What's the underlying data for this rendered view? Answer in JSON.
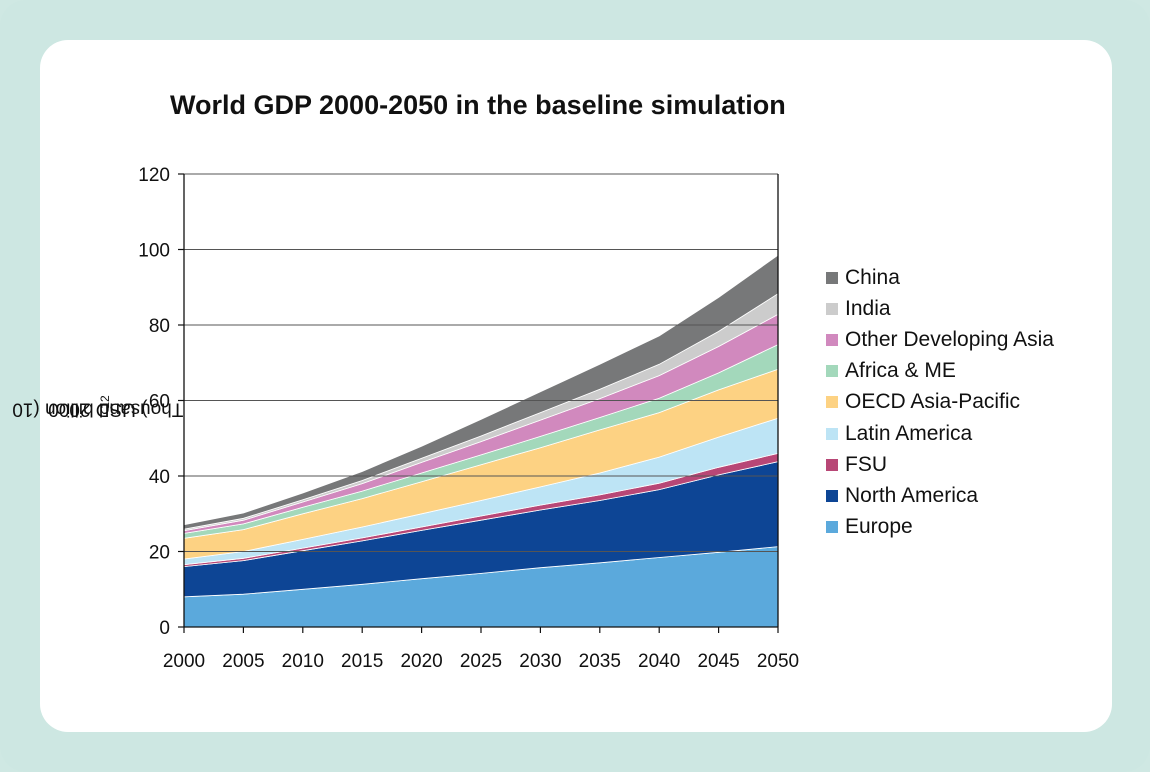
{
  "chart_data": {
    "type": "area",
    "stacked": true,
    "title": "World GDP 2000-2050 in the baseline simulation",
    "ylabel": "Thousand billion (10^12) USD 2000",
    "ylabel_parts": {
      "pre": "Thousand billion (10",
      "sup": "12",
      "post": ") USD 2000"
    },
    "xlabel": "",
    "ylim": [
      0,
      120
    ],
    "yticks": [
      0,
      20,
      40,
      60,
      80,
      100,
      120
    ],
    "grid": "horizontal",
    "legend_position": "right",
    "x": [
      2000,
      2005,
      2010,
      2015,
      2020,
      2025,
      2030,
      2035,
      2040,
      2045,
      2050
    ],
    "series": [
      {
        "name": "Europe",
        "color": "#5ba9dc",
        "values": [
          8.0,
          8.7,
          10.0,
          11.3,
          12.8,
          14.2,
          15.7,
          17.0,
          18.4,
          19.8,
          21.3
        ]
      },
      {
        "name": "North America",
        "color": "#0d4595",
        "values": [
          8.0,
          8.9,
          10.2,
          11.5,
          12.8,
          14.1,
          15.3,
          16.5,
          18.0,
          20.5,
          22.5
        ]
      },
      {
        "name": "FSU",
        "color": "#b84776",
        "values": [
          0.5,
          0.6,
          0.7,
          0.8,
          0.9,
          1.1,
          1.3,
          1.5,
          1.7,
          2.0,
          2.2
        ]
      },
      {
        "name": "Latin America",
        "color": "#bde4f5",
        "values": [
          1.5,
          1.8,
          2.3,
          2.9,
          3.5,
          4.1,
          4.8,
          5.8,
          6.9,
          8.0,
          9.3
        ]
      },
      {
        "name": "OECD Asia-Pacific",
        "color": "#fdd283",
        "values": [
          5.5,
          5.8,
          6.8,
          7.5,
          8.5,
          9.5,
          10.4,
          11.4,
          11.8,
          12.5,
          13.0
        ]
      },
      {
        "name": "Africa & ME",
        "color": "#a3d8bb",
        "values": [
          1.3,
          1.5,
          1.7,
          2.0,
          2.3,
          2.6,
          3.0,
          3.3,
          3.8,
          4.5,
          6.5
        ]
      },
      {
        "name": "Other Developing Asia",
        "color": "#d189be",
        "values": [
          0.7,
          1.0,
          1.4,
          2.0,
          2.8,
          3.5,
          4.3,
          5.0,
          6.0,
          7.0,
          8.0
        ]
      },
      {
        "name": "India",
        "color": "#cccccc",
        "values": [
          0.4,
          0.5,
          0.6,
          0.8,
          1.1,
          1.5,
          2.0,
          2.5,
          3.0,
          4.0,
          5.5
        ]
      },
      {
        "name": "China",
        "color": "#777879",
        "values": [
          1.2,
          1.4,
          1.8,
          2.4,
          3.2,
          4.4,
          5.5,
          6.6,
          7.5,
          9.0,
          10.2
        ]
      }
    ]
  }
}
